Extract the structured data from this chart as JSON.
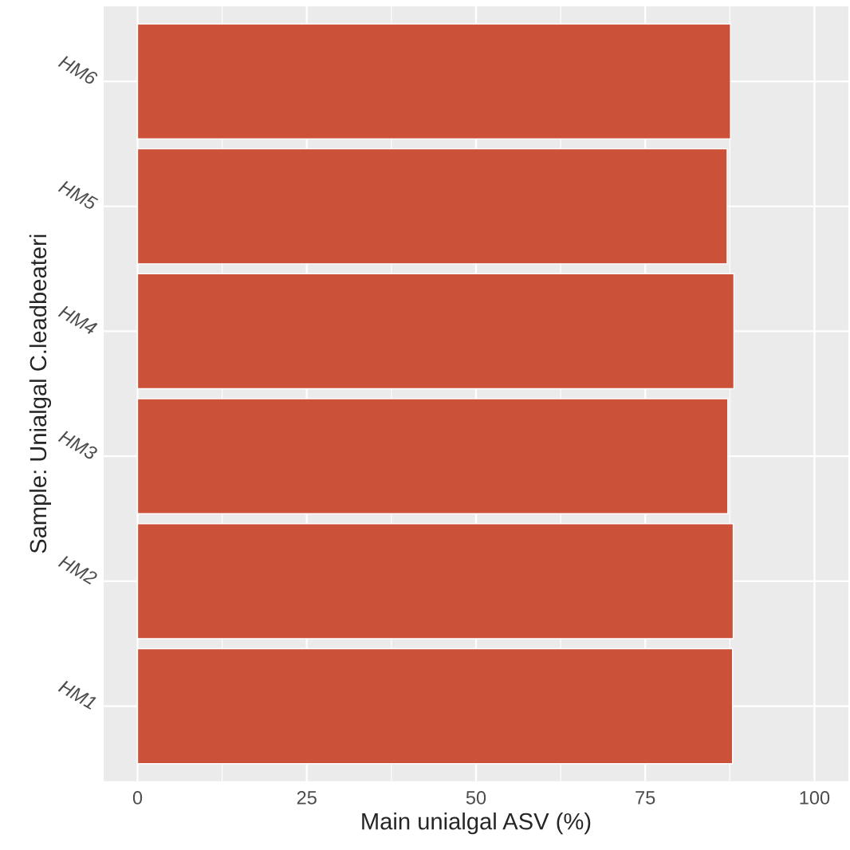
{
  "chart_data": {
    "type": "bar",
    "orientation": "horizontal",
    "xlabel": "Main unialgal ASV (%)",
    "ylabel": "Sample: Unialgal C.leadbeateri",
    "categories": [
      "HM6",
      "HM5",
      "HM4",
      "HM3",
      "HM2",
      "HM1"
    ],
    "values": [
      87.6,
      87.1,
      88.1,
      87.2,
      88.0,
      87.9
    ],
    "color": "#cc5139",
    "xlim": [
      -5,
      105
    ],
    "xticks": [
      0,
      25,
      50,
      75,
      100
    ],
    "grid": true
  }
}
